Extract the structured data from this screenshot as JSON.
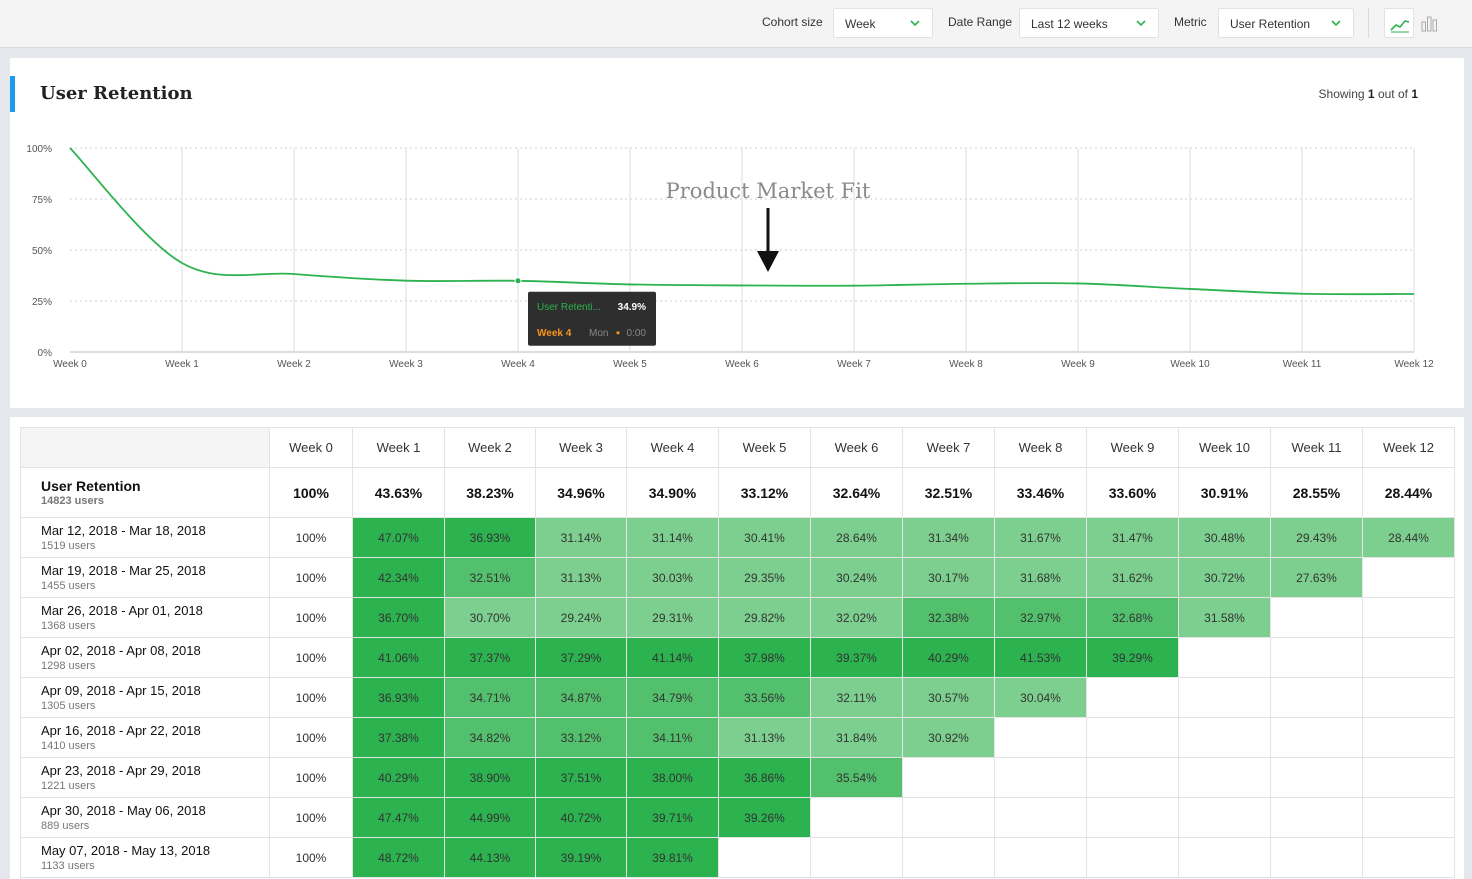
{
  "toolbar": {
    "cohort_size_label": "Cohort size",
    "cohort_size_value": "Week",
    "date_range_label": "Date Range",
    "date_range_value": "Last 12 weeks",
    "metric_label": "Metric",
    "metric_value": "User Retention",
    "icons": [
      "line-chart-icon",
      "bar-chart-icon"
    ],
    "accent_color": "#2cb24e"
  },
  "chart_card": {
    "title": "User Retention",
    "showing_prefix": "Showing",
    "showing_current": "1",
    "showing_mid": "out of",
    "showing_total": "1",
    "accent_color": "#1e9be9"
  },
  "chart_data": {
    "type": "line",
    "x": [
      "Week 0",
      "Week 1",
      "Week 2",
      "Week 3",
      "Week 4",
      "Week 5",
      "Week 6",
      "Week 7",
      "Week 8",
      "Week 9",
      "Week 10",
      "Week 11",
      "Week 12"
    ],
    "y_ticks": [
      "100%",
      "75%",
      "50%",
      "25%",
      "0%"
    ],
    "ylim": [
      0,
      100
    ],
    "series": [
      {
        "values": [
          100,
          43.63,
          38.23,
          34.96,
          34.9,
          33.12,
          32.64,
          32.51,
          33.46,
          33.6,
          30.91,
          28.55,
          28.44
        ],
        "color": "#2cb24e"
      }
    ],
    "annotation": {
      "text": "Product Market Fit",
      "x_between": [
        "Week 6",
        "Week 7"
      ]
    },
    "tooltip": {
      "series_label": "User Retenti...",
      "value": "34.9%",
      "x_label": "Week 4",
      "detail": "Mon",
      "time": "0:00",
      "x_index": 4
    },
    "grid": true
  },
  "table": {
    "columns": [
      "Week 0",
      "Week 1",
      "Week 2",
      "Week 3",
      "Week 4",
      "Week 5",
      "Week 6",
      "Week 7",
      "Week 8",
      "Week 9",
      "Week 10",
      "Week 11",
      "Week 12"
    ],
    "summary": {
      "label": "User Retention",
      "users": "14823 users",
      "values": [
        "100%",
        "43.63%",
        "38.23%",
        "34.96%",
        "34.90%",
        "33.12%",
        "32.64%",
        "32.51%",
        "33.46%",
        "33.60%",
        "30.91%",
        "28.55%",
        "28.44%"
      ]
    },
    "rows": [
      {
        "label": "Mar 12, 2018 - Mar 18, 2018",
        "users": "1519 users",
        "values": [
          "100%",
          "47.07%",
          "36.93%",
          "31.14%",
          "31.14%",
          "30.41%",
          "28.64%",
          "31.34%",
          "31.67%",
          "31.47%",
          "30.48%",
          "29.43%",
          "28.44%"
        ]
      },
      {
        "label": "Mar 19, 2018 - Mar 25, 2018",
        "users": "1455 users",
        "values": [
          "100%",
          "42.34%",
          "32.51%",
          "31.13%",
          "30.03%",
          "29.35%",
          "30.24%",
          "30.17%",
          "31.68%",
          "31.62%",
          "30.72%",
          "27.63%"
        ]
      },
      {
        "label": "Mar 26, 2018 - Apr 01, 2018",
        "users": "1368 users",
        "values": [
          "100%",
          "36.70%",
          "30.70%",
          "29.24%",
          "29.31%",
          "29.82%",
          "32.02%",
          "32.38%",
          "32.97%",
          "32.68%",
          "31.58%"
        ]
      },
      {
        "label": "Apr 02, 2018 - Apr 08, 2018",
        "users": "1298 users",
        "values": [
          "100%",
          "41.06%",
          "37.37%",
          "37.29%",
          "41.14%",
          "37.98%",
          "39.37%",
          "40.29%",
          "41.53%",
          "39.29%"
        ]
      },
      {
        "label": "Apr 09, 2018 - Apr 15, 2018",
        "users": "1305 users",
        "values": [
          "100%",
          "36.93%",
          "34.71%",
          "34.87%",
          "34.79%",
          "33.56%",
          "32.11%",
          "30.57%",
          "30.04%"
        ]
      },
      {
        "label": "Apr 16, 2018 - Apr 22, 2018",
        "users": "1410 users",
        "values": [
          "100%",
          "37.38%",
          "34.82%",
          "33.12%",
          "34.11%",
          "31.13%",
          "31.84%",
          "30.92%"
        ]
      },
      {
        "label": "Apr 23, 2018 - Apr 29, 2018",
        "users": "1221 users",
        "values": [
          "100%",
          "40.29%",
          "38.90%",
          "37.51%",
          "38.00%",
          "36.86%",
          "35.54%"
        ]
      },
      {
        "label": "Apr 30, 2018 - May 06, 2018",
        "users": "889 users",
        "values": [
          "100%",
          "47.47%",
          "44.99%",
          "40.72%",
          "39.71%",
          "39.26%"
        ]
      },
      {
        "label": "May 07, 2018 - May 13, 2018",
        "users": "1133 users",
        "values": [
          "100%",
          "48.72%",
          "44.13%",
          "39.19%",
          "39.81%"
        ]
      }
    ],
    "cell_colors": {
      "high": "#2cb24e",
      "mid": "#53c06d",
      "low": "#7ccf8f"
    }
  }
}
